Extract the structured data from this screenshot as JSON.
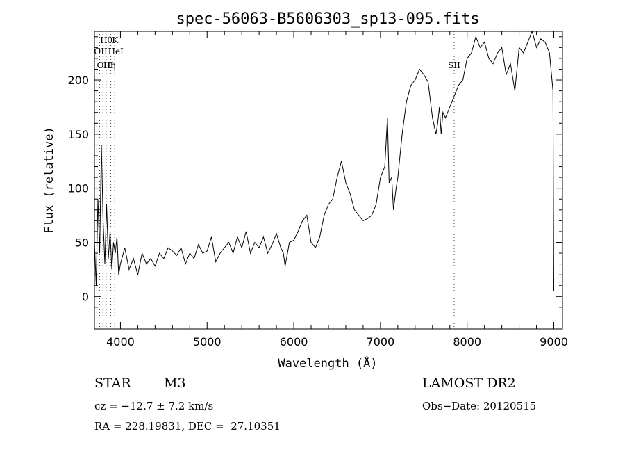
{
  "chart_data": {
    "type": "line",
    "title": "spec-56063-B5606303_sp13-095.fits",
    "xlabel": "Wavelength (Å)",
    "ylabel": "Flux (relative)",
    "xlim": [
      3700,
      9100
    ],
    "ylim": [
      -30,
      245
    ],
    "xticks": [
      4000,
      5000,
      6000,
      7000,
      8000,
      9000
    ],
    "yticks": [
      0,
      50,
      100,
      150,
      200
    ],
    "series": [
      {
        "x": [
          3700,
          3720,
          3740,
          3760,
          3780,
          3800,
          3820,
          3840,
          3860,
          3880,
          3900,
          3920,
          3940,
          3960,
          3980,
          4000,
          4050,
          4100,
          4150,
          4200,
          4250,
          4300,
          4350,
          4400,
          4450,
          4500,
          4550,
          4600,
          4650,
          4700,
          4750,
          4800,
          4850,
          4900,
          4950,
          5000,
          5050,
          5100,
          5150,
          5200,
          5250,
          5300,
          5350,
          5400,
          5450,
          5500,
          5550,
          5600,
          5650,
          5700,
          5750,
          5800,
          5850,
          5880,
          5900,
          5950,
          6000,
          6050,
          6100,
          6150,
          6200,
          6250,
          6300,
          6350,
          6400,
          6450,
          6500,
          6550,
          6600,
          6650,
          6700,
          6750,
          6800,
          6850,
          6900,
          6950,
          7000,
          7050,
          7080,
          7100,
          7130,
          7150,
          7180,
          7200,
          7250,
          7300,
          7350,
          7400,
          7450,
          7500,
          7550,
          7600,
          7640,
          7660,
          7680,
          7700,
          7720,
          7750,
          7800,
          7850,
          7900,
          7950,
          8000,
          8050,
          8100,
          8150,
          8200,
          8250,
          8300,
          8350,
          8400,
          8450,
          8500,
          8550,
          8600,
          8650,
          8700,
          8750,
          8800,
          8850,
          8900,
          8950,
          8990,
          9000
        ],
        "y": [
          50,
          10,
          90,
          40,
          140,
          70,
          30,
          85,
          35,
          60,
          25,
          50,
          40,
          55,
          20,
          30,
          45,
          25,
          35,
          20,
          40,
          30,
          35,
          28,
          40,
          35,
          45,
          42,
          38,
          45,
          30,
          40,
          35,
          48,
          40,
          42,
          55,
          32,
          40,
          45,
          50,
          40,
          55,
          45,
          60,
          40,
          50,
          45,
          55,
          40,
          48,
          58,
          45,
          40,
          28,
          50,
          52,
          60,
          70,
          75,
          50,
          45,
          55,
          75,
          85,
          90,
          110,
          125,
          105,
          95,
          80,
          75,
          70,
          72,
          75,
          85,
          110,
          120,
          165,
          105,
          110,
          80,
          100,
          110,
          150,
          180,
          195,
          200,
          210,
          205,
          198,
          165,
          150,
          160,
          175,
          150,
          170,
          165,
          175,
          185,
          195,
          200,
          220,
          225,
          240,
          230,
          235,
          220,
          215,
          225,
          230,
          205,
          215,
          190,
          230,
          225,
          235,
          245,
          230,
          238,
          235,
          225,
          190,
          5
        ]
      }
    ],
    "line_annotations": [
      {
        "label": "Hθ",
        "x": 3798,
        "row": 1
      },
      {
        "label": "K",
        "x": 3934,
        "row": 1
      },
      {
        "label": "OII",
        "x": 3727,
        "row": 2
      },
      {
        "label": "HeI",
        "x": 3889,
        "row": 2
      },
      {
        "label": "OIII",
        "x": 3760,
        "row": 3
      },
      {
        "label": "Hη",
        "x": 3835,
        "row": 3
      },
      {
        "label": "SII",
        "x": 7850,
        "row": 3
      }
    ]
  },
  "info": {
    "object": "STAR",
    "subclass": "M3",
    "survey": "LAMOST DR2",
    "cz": "cz = −12.7 ± 7.2 km/s",
    "obs_date": "Obs−Date: 20120515",
    "radec": "RA = 228.19831, DEC =  27.10351"
  }
}
